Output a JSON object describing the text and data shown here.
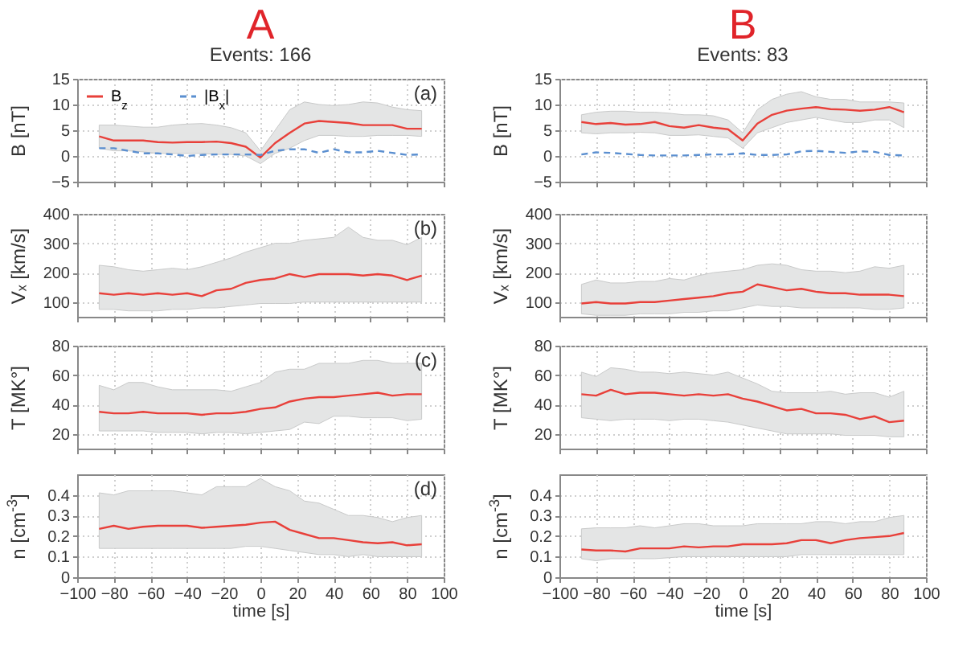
{
  "chart_data": [
    {
      "type": "line",
      "title": "A",
      "subtitle": "Events: 166",
      "ylabel": "B [nT]",
      "annotations": [
        "(a)"
      ],
      "x": [
        -88,
        -80,
        -72,
        -64,
        -56,
        -48,
        -40,
        -32,
        -24,
        -16,
        -8,
        0,
        8,
        16,
        24,
        32,
        40,
        48,
        56,
        64,
        72,
        80,
        88
      ],
      "xlim": [
        -100,
        100
      ],
      "xticks": [
        -100,
        -80,
        -60,
        -40,
        -20,
        0,
        20,
        40,
        60,
        80,
        100
      ],
      "ylim": [
        -5,
        15
      ],
      "yticks": [
        -5,
        0,
        5,
        10,
        15
      ],
      "grid": true,
      "tick_labels": "y",
      "legend": "top left",
      "series": [
        {
          "name": "B$_{z}$",
          "color": "#e8403a",
          "line_style": "solid",
          "values": [
            3.8,
            3.0,
            3.0,
            3.0,
            2.7,
            2.6,
            2.7,
            2.7,
            2.8,
            2.5,
            1.8,
            -0.3,
            2.5,
            4.5,
            6.3,
            6.8,
            6.6,
            6.4,
            6.0,
            6.0,
            6.0,
            5.3,
            5.3
          ],
          "lower": [
            1.5,
            1,
            1,
            0.8,
            0.5,
            0.5,
            0.5,
            0.5,
            0.3,
            0.3,
            0,
            -1.5,
            0.5,
            1.5,
            3,
            4,
            4,
            3.8,
            3.8,
            4,
            4,
            4,
            3.8
          ],
          "upper": [
            6,
            6,
            5.8,
            5.6,
            5.6,
            6,
            6.2,
            6.3,
            6,
            5.5,
            4.5,
            1,
            5,
            9,
            10.5,
            10,
            9.8,
            10,
            10.5,
            10.3,
            9.5,
            9,
            8.8
          ]
        },
        {
          "name": "|B$_{x}$|",
          "color": "#5b8fd0",
          "line_style": "dashed",
          "values": [
            1.5,
            1.5,
            1.0,
            0.5,
            0.5,
            0.3,
            0.0,
            0.2,
            0.3,
            0.3,
            0.3,
            0.2,
            1.0,
            1.3,
            1.3,
            0.6,
            1.3,
            0.7,
            0.7,
            1.0,
            0.6,
            0.2,
            0.3
          ]
        }
      ]
    },
    {
      "type": "line",
      "title": "B",
      "subtitle": "Events: 83",
      "ylabel": "B [nT]",
      "x": [
        -88,
        -80,
        -72,
        -64,
        -56,
        -48,
        -40,
        -32,
        -24,
        -16,
        -8,
        0,
        8,
        16,
        24,
        32,
        40,
        48,
        56,
        64,
        72,
        80,
        88
      ],
      "xlim": [
        -100,
        100
      ],
      "xticks": [
        -100,
        -80,
        -60,
        -40,
        -20,
        0,
        20,
        40,
        60,
        80,
        100
      ],
      "ylim": [
        -5,
        15
      ],
      "yticks": [
        -5,
        0,
        5,
        10,
        15
      ],
      "grid": true,
      "tick_labels": "y",
      "series": [
        {
          "color": "#e8403a",
          "line_style": "solid",
          "values": [
            6.6,
            6.2,
            6.4,
            6.1,
            6.2,
            6.6,
            5.8,
            5.5,
            6.0,
            5.5,
            5.2,
            3.0,
            6.3,
            8.0,
            8.8,
            9.2,
            9.5,
            9.1,
            9.0,
            8.8,
            9.0,
            9.5,
            8.5
          ],
          "lower": [
            4.5,
            4.3,
            4.5,
            4.5,
            4.6,
            4.5,
            4.0,
            4.0,
            4.1,
            3.8,
            3.5,
            1.5,
            4.5,
            5.5,
            6.5,
            7,
            7.5,
            7,
            6.5,
            6.5,
            7,
            7,
            5.5
          ],
          "upper": [
            8,
            8.5,
            8.7,
            8.7,
            8.5,
            8.5,
            8.3,
            8.0,
            8.0,
            7.8,
            7.0,
            4.5,
            9,
            11,
            12,
            12.5,
            11.5,
            11,
            11,
            10.5,
            10.5,
            10.5,
            10.3
          ]
        },
        {
          "color": "#5b8fd0",
          "line_style": "dashed",
          "values": [
            0.3,
            0.7,
            0.6,
            0.4,
            0.2,
            0.1,
            0.1,
            0.1,
            0.2,
            0.3,
            0.3,
            0.5,
            0.2,
            0.2,
            0.3,
            0.9,
            1.0,
            0.8,
            0.6,
            0.9,
            0.8,
            0.2,
            0.1
          ]
        }
      ]
    },
    {
      "type": "line",
      "ylabel": "Vₓ [km/s]",
      "annotations": [
        "(b)"
      ],
      "x": [
        -88,
        -80,
        -72,
        -64,
        -56,
        -48,
        -40,
        -32,
        -24,
        -16,
        -8,
        0,
        8,
        16,
        24,
        32,
        40,
        48,
        56,
        64,
        72,
        80,
        88
      ],
      "xlim": [
        -100,
        100
      ],
      "xticks": [
        -100,
        -80,
        -60,
        -40,
        -20,
        0,
        20,
        40,
        60,
        80,
        100
      ],
      "ylim": [
        50,
        400
      ],
      "yticks": [
        100,
        200,
        300,
        400
      ],
      "grid": true,
      "tick_labels": "y",
      "series": [
        {
          "color": "#e8403a",
          "line_style": "solid",
          "values": [
            130,
            125,
            130,
            125,
            130,
            125,
            130,
            120,
            140,
            145,
            165,
            175,
            180,
            195,
            185,
            195,
            195,
            195,
            190,
            195,
            190,
            175,
            190
          ],
          "lower": [
            75,
            75,
            70,
            70,
            70,
            75,
            75,
            80,
            80,
            85,
            90,
            95,
            95,
            95,
            100,
            100,
            100,
            100,
            100,
            100,
            100,
            100,
            100
          ],
          "upper": [
            225,
            220,
            210,
            205,
            210,
            215,
            210,
            220,
            235,
            250,
            270,
            285,
            300,
            300,
            310,
            315,
            320,
            355,
            320,
            310,
            310,
            295,
            320
          ]
        }
      ]
    },
    {
      "type": "line",
      "ylabel": "Vₓ [km/s]",
      "x": [
        -88,
        -80,
        -72,
        -64,
        -56,
        -48,
        -40,
        -32,
        -24,
        -16,
        -8,
        0,
        8,
        16,
        24,
        32,
        40,
        48,
        56,
        64,
        72,
        80,
        88
      ],
      "xlim": [
        -100,
        100
      ],
      "xticks": [
        -100,
        -80,
        -60,
        -40,
        -20,
        0,
        20,
        40,
        60,
        80,
        100
      ],
      "ylim": [
        50,
        400
      ],
      "yticks": [
        100,
        200,
        300,
        400
      ],
      "grid": true,
      "tick_labels": "y",
      "series": [
        {
          "color": "#e8403a",
          "line_style": "solid",
          "values": [
            95,
            100,
            95,
            95,
            100,
            100,
            105,
            110,
            115,
            120,
            130,
            135,
            160,
            150,
            140,
            145,
            135,
            130,
            130,
            125,
            125,
            125,
            120
          ],
          "lower": [
            60,
            55,
            55,
            55,
            60,
            60,
            60,
            65,
            65,
            70,
            70,
            80,
            90,
            85,
            85,
            80,
            80,
            80,
            80,
            80,
            75,
            75,
            80
          ],
          "upper": [
            160,
            175,
            165,
            165,
            170,
            170,
            180,
            175,
            190,
            200,
            205,
            210,
            225,
            230,
            225,
            210,
            205,
            205,
            200,
            205,
            220,
            215,
            225
          ]
        }
      ]
    },
    {
      "type": "line",
      "ylabel": "T [MK°]",
      "annotations": [
        "(c)"
      ],
      "x": [
        -88,
        -80,
        -72,
        -64,
        -56,
        -48,
        -40,
        -32,
        -24,
        -16,
        -8,
        0,
        8,
        16,
        24,
        32,
        40,
        48,
        56,
        64,
        72,
        80,
        88
      ],
      "xlim": [
        -100,
        100
      ],
      "xticks": [
        -100,
        -80,
        -60,
        -40,
        -20,
        0,
        20,
        40,
        60,
        80,
        100
      ],
      "ylim": [
        10,
        80
      ],
      "yticks": [
        20,
        40,
        60,
        80
      ],
      "grid": true,
      "tick_labels": "y",
      "series": [
        {
          "color": "#e8403a",
          "line_style": "solid",
          "values": [
            35,
            34,
            34,
            35,
            34,
            34,
            34,
            33,
            34,
            34,
            35,
            37,
            38,
            42,
            44,
            45,
            45,
            46,
            47,
            48,
            46,
            47,
            47
          ],
          "lower": [
            22,
            22,
            22,
            22,
            21,
            21,
            21,
            20,
            21,
            21,
            20,
            21,
            22,
            23,
            28,
            27,
            32,
            32,
            31,
            31,
            31,
            29,
            30
          ],
          "upper": [
            53,
            50,
            55,
            55,
            52,
            50,
            50,
            50,
            50,
            49,
            52,
            55,
            62,
            64,
            64,
            68,
            68,
            68,
            70,
            70,
            68,
            68,
            68
          ]
        }
      ]
    },
    {
      "type": "line",
      "ylabel": "T [MK°]",
      "x": [
        -88,
        -80,
        -72,
        -64,
        -56,
        -48,
        -40,
        -32,
        -24,
        -16,
        -8,
        0,
        8,
        16,
        24,
        32,
        40,
        48,
        56,
        64,
        72,
        80,
        88
      ],
      "xlim": [
        -100,
        100
      ],
      "xticks": [
        -100,
        -80,
        -60,
        -40,
        -20,
        0,
        20,
        40,
        60,
        80,
        100
      ],
      "ylim": [
        10,
        80
      ],
      "yticks": [
        20,
        40,
        60,
        80
      ],
      "grid": true,
      "tick_labels": "y",
      "series": [
        {
          "color": "#e8403a",
          "line_style": "solid",
          "values": [
            47,
            46,
            50,
            47,
            48,
            48,
            47,
            46,
            47,
            46,
            47,
            44,
            42,
            39,
            36,
            37,
            34,
            34,
            33,
            30,
            32,
            28,
            29
          ],
          "lower": [
            31,
            30,
            29,
            30,
            30,
            30,
            29,
            30,
            30,
            29,
            28,
            26,
            24,
            22,
            20,
            20,
            20,
            20,
            19,
            19,
            19,
            18,
            18
          ],
          "upper": [
            62,
            59,
            65,
            64,
            62,
            62,
            61,
            62,
            61,
            60,
            62,
            58,
            54,
            49,
            48,
            48,
            48,
            49,
            47,
            48,
            48,
            45,
            49
          ]
        }
      ]
    },
    {
      "type": "line",
      "ylabel": "n [cm$^{-3}$]",
      "xlabel": "time [s]",
      "annotations": [
        "(d)"
      ],
      "x": [
        -88,
        -80,
        -72,
        -64,
        -56,
        -48,
        -40,
        -32,
        -24,
        -16,
        -8,
        0,
        8,
        16,
        24,
        32,
        40,
        48,
        56,
        64,
        72,
        80,
        88
      ],
      "xlim": [
        -100,
        100
      ],
      "xticks": [
        -100,
        -80,
        -60,
        -40,
        -20,
        0,
        20,
        40,
        60,
        80,
        100
      ],
      "ylim": [
        0,
        0.5
      ],
      "yticks": [
        0,
        0.1,
        0.2,
        0.3,
        0.4
      ],
      "grid": true,
      "series": [
        {
          "color": "#e8403a",
          "line_style": "solid",
          "values": [
            0.235,
            0.25,
            0.235,
            0.245,
            0.25,
            0.25,
            0.25,
            0.24,
            0.245,
            0.25,
            0.255,
            0.265,
            0.27,
            0.23,
            0.21,
            0.19,
            0.19,
            0.18,
            0.17,
            0.165,
            0.17,
            0.155,
            0.16
          ],
          "lower": [
            0.14,
            0.14,
            0.14,
            0.14,
            0.14,
            0.14,
            0.14,
            0.14,
            0.14,
            0.14,
            0.15,
            0.15,
            0.14,
            0.13,
            0.12,
            0.11,
            0.11,
            0.1,
            0.11,
            0.1,
            0.1,
            0.1,
            0.1
          ],
          "upper": [
            0.41,
            0.4,
            0.42,
            0.42,
            0.42,
            0.42,
            0.41,
            0.4,
            0.44,
            0.44,
            0.44,
            0.48,
            0.44,
            0.42,
            0.37,
            0.36,
            0.33,
            0.3,
            0.3,
            0.29,
            0.27,
            0.29,
            0.3
          ]
        }
      ]
    },
    {
      "type": "line",
      "ylabel": "n [cm$^{-3}$]",
      "xlabel": "time [s]",
      "x": [
        -88,
        -80,
        -72,
        -64,
        -56,
        -48,
        -40,
        -32,
        -24,
        -16,
        -8,
        0,
        8,
        16,
        24,
        32,
        40,
        48,
        56,
        64,
        72,
        80,
        88
      ],
      "xlim": [
        -100,
        100
      ],
      "xticks": [
        -100,
        -80,
        -60,
        -40,
        -20,
        0,
        20,
        40,
        60,
        80,
        100
      ],
      "ylim": [
        0,
        0.5
      ],
      "yticks": [
        0,
        0.1,
        0.2,
        0.3,
        0.4
      ],
      "grid": true,
      "series": [
        {
          "color": "#e8403a",
          "line_style": "solid",
          "values": [
            0.135,
            0.13,
            0.13,
            0.125,
            0.14,
            0.14,
            0.14,
            0.15,
            0.145,
            0.15,
            0.15,
            0.16,
            0.16,
            0.16,
            0.165,
            0.18,
            0.18,
            0.165,
            0.18,
            0.19,
            0.195,
            0.2,
            0.215
          ],
          "lower": [
            0.09,
            0.08,
            0.09,
            0.09,
            0.09,
            0.09,
            0.095,
            0.1,
            0.1,
            0.1,
            0.1,
            0.1,
            0.1,
            0.1,
            0.1,
            0.11,
            0.11,
            0.11,
            0.11,
            0.11,
            0.11,
            0.11,
            0.11
          ],
          "upper": [
            0.235,
            0.24,
            0.24,
            0.24,
            0.25,
            0.24,
            0.25,
            0.26,
            0.26,
            0.25,
            0.25,
            0.25,
            0.26,
            0.26,
            0.26,
            0.26,
            0.27,
            0.27,
            0.26,
            0.27,
            0.27,
            0.29,
            0.3
          ]
        }
      ]
    }
  ]
}
